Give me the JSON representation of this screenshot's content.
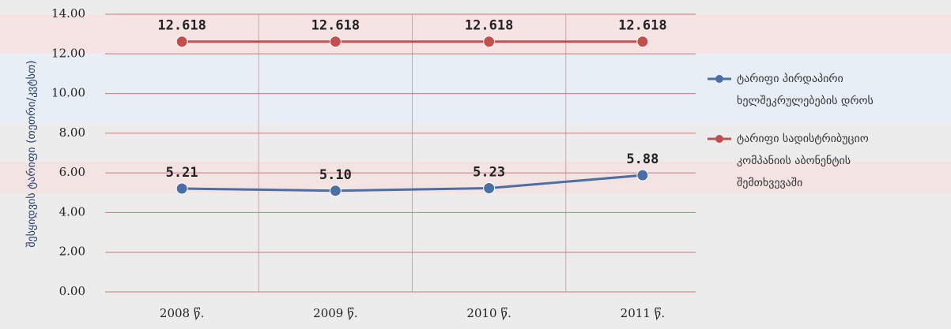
{
  "chart_data": {
    "type": "line",
    "y_label": "შესყიდვის ტარიფი (თეთრი/კვტსთ)",
    "categories": [
      "2008 წ.",
      "2009 წ.",
      "2010 წ.",
      "2011 წ."
    ],
    "series": [
      {
        "name": "ტარიფი პირდაპირი ხელშეკრულებების დროს",
        "color": "#4a6fa5",
        "values": [
          5.21,
          5.1,
          5.23,
          5.88
        ],
        "value_labels": [
          "5.21",
          "5.10",
          "5.23",
          "5.88"
        ]
      },
      {
        "name": "ტარიფი სადისტრიბუციო კომპანიის აბონენტის შემთხვევაში",
        "color": "#c0504d",
        "values": [
          12.618,
          12.618,
          12.618,
          12.618
        ],
        "value_labels": [
          "12.618",
          "12.618",
          "12.618",
          "12.618"
        ]
      }
    ],
    "ylim": [
      0,
      14
    ],
    "yticks": [
      {
        "value": 0,
        "label": "0.00"
      },
      {
        "value": 2,
        "label": "2.00"
      },
      {
        "value": 4,
        "label": "4.00"
      },
      {
        "value": 6,
        "label": "6.00"
      },
      {
        "value": 8,
        "label": "8.00"
      },
      {
        "value": 10,
        "label": "10.00"
      },
      {
        "value": 12,
        "label": "12.00"
      },
      {
        "value": 14,
        "label": "14.00"
      }
    ],
    "grid": true,
    "legend": "right"
  }
}
